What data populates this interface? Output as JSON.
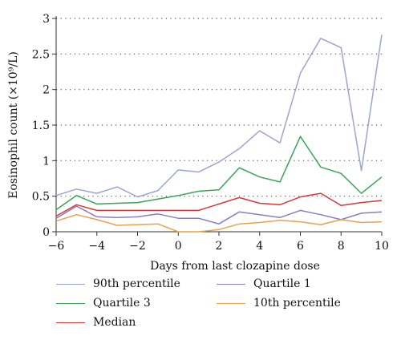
{
  "chart_data": {
    "type": "line",
    "xlabel": "Days from last clozapine dose",
    "ylabel": "Eosinophil count (×10⁹/L)",
    "xlim": [
      -6,
      10
    ],
    "ylim": [
      0,
      3
    ],
    "x_ticks": [
      "−6",
      "−4",
      "−2",
      "0",
      "2",
      "4",
      "6",
      "8",
      "10"
    ],
    "y_ticks": [
      "0",
      "0.5",
      "1",
      "1.5",
      "2",
      "2.5",
      "3"
    ],
    "grid": "horizontal dotted",
    "legend_position": "bottom",
    "x": [
      -6,
      -5,
      -4,
      -3,
      -2,
      -1,
      0,
      1,
      2,
      3,
      4,
      5,
      6,
      7,
      8,
      9,
      10
    ],
    "series": [
      {
        "name": "90th percentile",
        "color": "#9aa6d0",
        "values": [
          0.51,
          0.6,
          0.54,
          0.63,
          0.49,
          0.58,
          0.87,
          0.84,
          0.98,
          1.17,
          1.42,
          1.25,
          2.23,
          2.72,
          2.59,
          0.86,
          2.77
        ]
      },
      {
        "name": "Quartile 3",
        "color": "#3aa35a",
        "values": [
          0.31,
          0.51,
          0.39,
          0.4,
          0.41,
          0.46,
          0.51,
          0.57,
          0.59,
          0.9,
          0.77,
          0.7,
          1.34,
          0.91,
          0.82,
          0.54,
          0.77
        ]
      },
      {
        "name": "Median",
        "color": "#d43a3a",
        "values": [
          0.22,
          0.38,
          0.3,
          0.3,
          0.3,
          0.3,
          0.3,
          0.3,
          0.39,
          0.48,
          0.4,
          0.38,
          0.49,
          0.54,
          0.37,
          0.41,
          0.44
        ]
      },
      {
        "name": "Quartile 1",
        "color": "#8a7dc0",
        "values": [
          0.19,
          0.36,
          0.21,
          0.2,
          0.21,
          0.25,
          0.19,
          0.19,
          0.11,
          0.28,
          0.24,
          0.2,
          0.3,
          0.24,
          0.17,
          0.26,
          0.28
        ]
      },
      {
        "name": "10th percentile",
        "color": "#e8a24a",
        "values": [
          0.15,
          0.24,
          0.17,
          0.09,
          0.1,
          0.11,
          0.0,
          0.0,
          0.03,
          0.11,
          0.13,
          0.16,
          0.14,
          0.1,
          0.17,
          0.13,
          0.14
        ]
      }
    ]
  },
  "legend": {
    "items": [
      {
        "label": "90th percentile",
        "color": "#9aa6d0"
      },
      {
        "label": "Quartile 1",
        "color": "#8a7dc0"
      },
      {
        "label": "Quartile 3",
        "color": "#3aa35a"
      },
      {
        "label": "10th percentile",
        "color": "#e8a24a"
      },
      {
        "label": "Median",
        "color": "#d43a3a"
      }
    ]
  }
}
